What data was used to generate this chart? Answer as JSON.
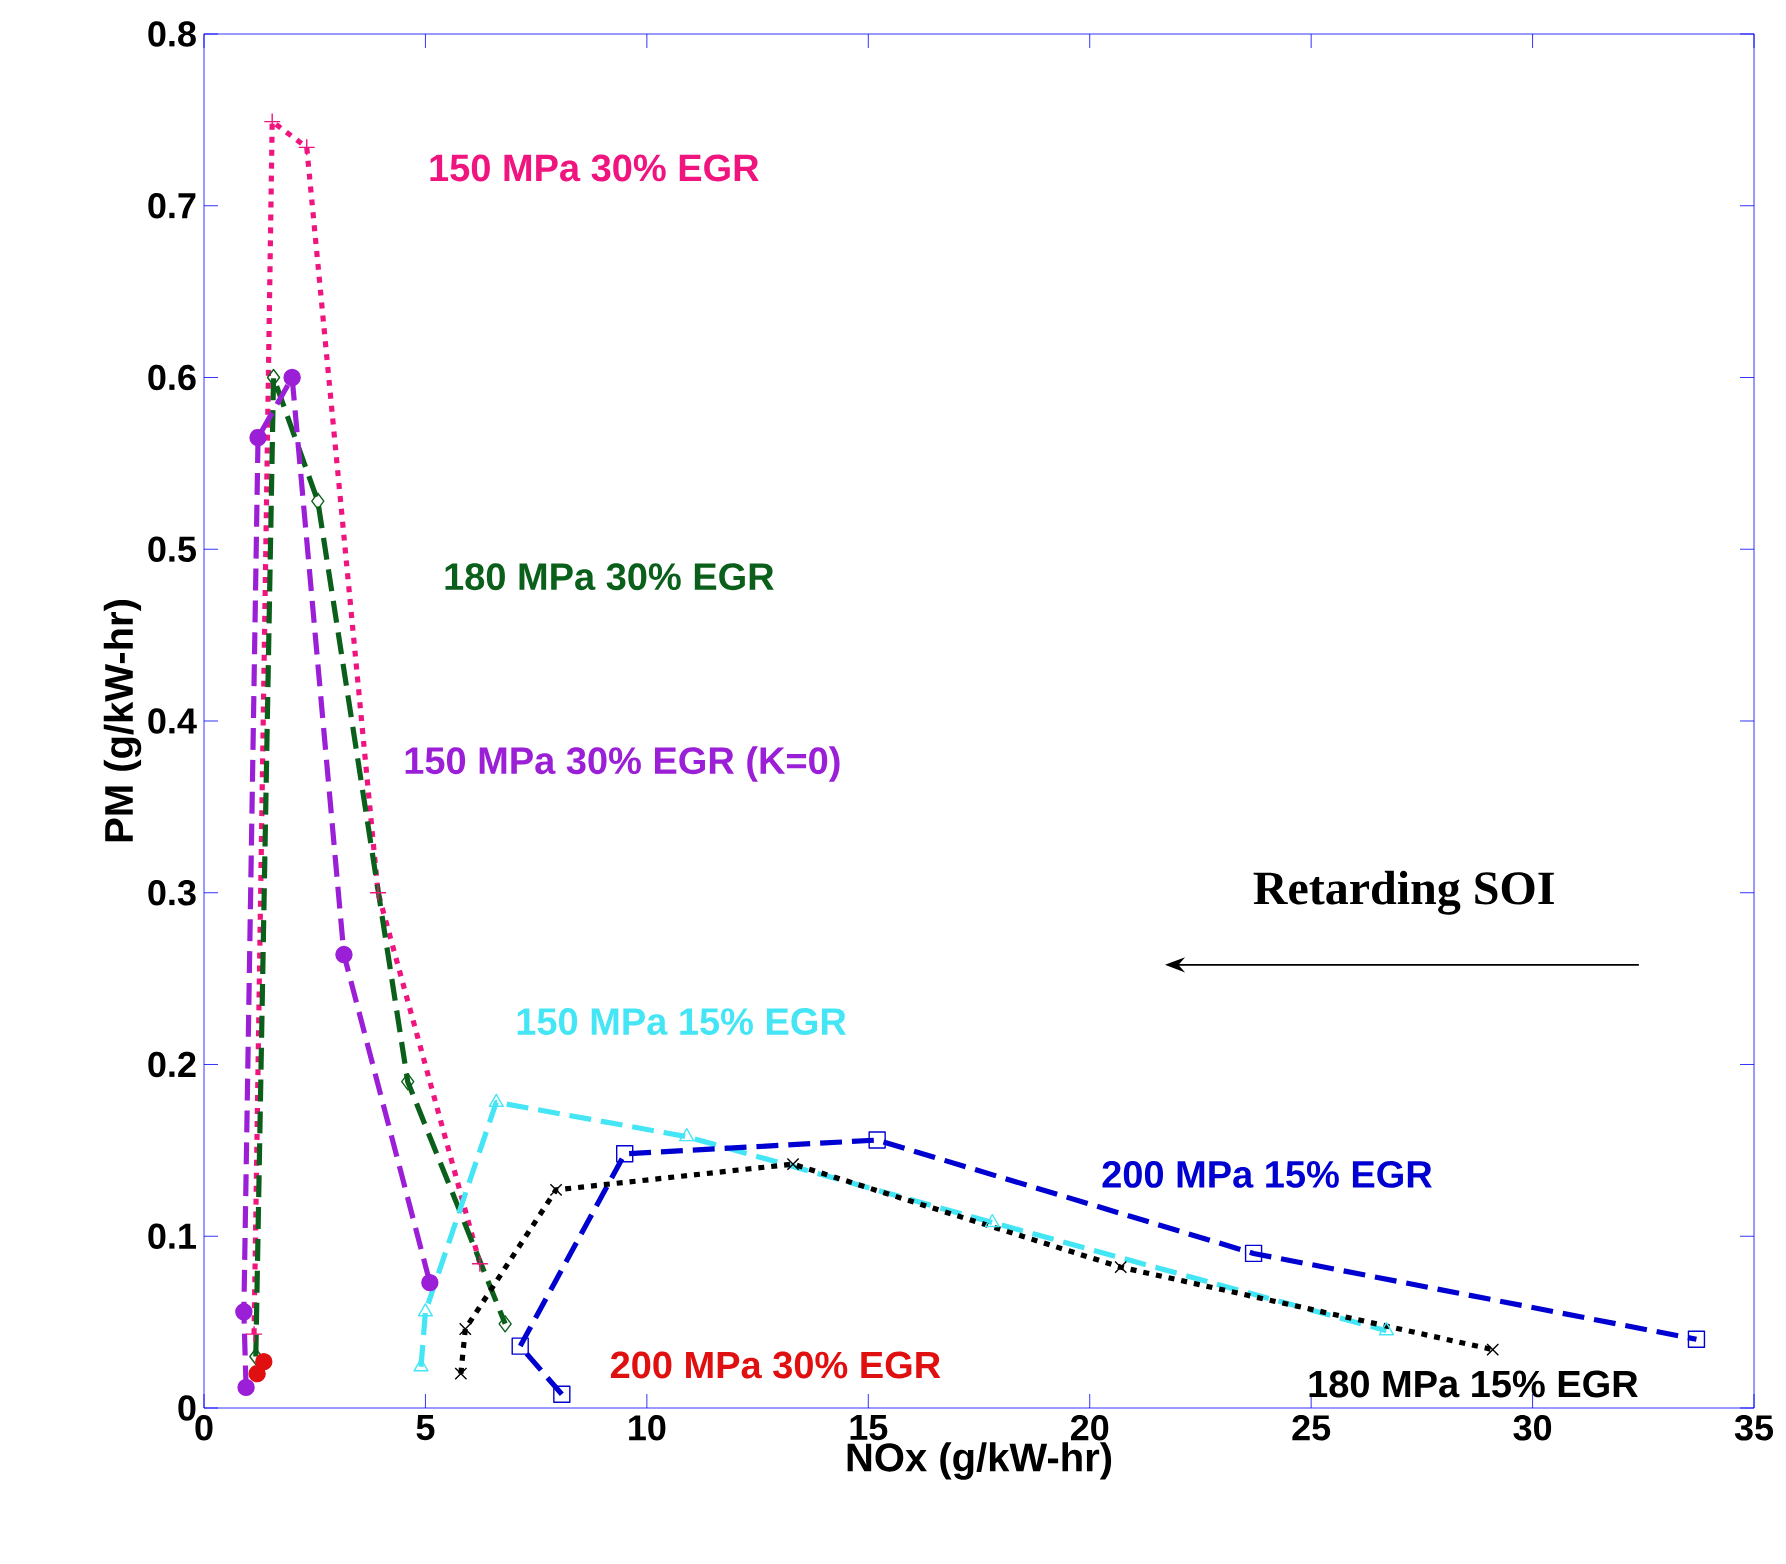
{
  "chart_data": {
    "type": "line",
    "xlabel": "NOx (g/kW-hr)",
    "ylabel": "PM (g/kW-hr)",
    "xlim": [
      0,
      35
    ],
    "ylim": [
      0,
      0.8
    ],
    "xticks": [
      0,
      5,
      10,
      15,
      20,
      25,
      30,
      35
    ],
    "yticks": [
      0,
      0.1,
      0.2,
      0.3,
      0.4,
      0.5,
      0.6,
      0.7,
      0.8
    ],
    "grid": false,
    "annotations": [
      "Retarding SOI"
    ],
    "series": [
      {
        "name": "150 MPa 30% EGR",
        "color": "#f0147f",
        "marker": "plus",
        "line_style": "dotted",
        "x": [
          1.13,
          1.54,
          2.32,
          3.93,
          6.23
        ],
        "values": [
          0.043,
          0.749,
          0.734,
          0.3,
          0.084
        ]
      },
      {
        "name": "180 MPa 30% EGR",
        "color": "#0a5f1a",
        "marker": "diamond",
        "line_style": "dashed",
        "x": [
          1.17,
          1.57,
          2.57,
          4.6,
          6.8
        ],
        "values": [
          0.03,
          0.6,
          0.528,
          0.19,
          0.049
        ]
      },
      {
        "name": "150 MPa 30% EGR (K=0)",
        "color": "#9b1fd6",
        "marker": "circle",
        "line_style": "dashed",
        "x": [
          0.95,
          0.9,
          1.22,
          1.99,
          3.16,
          5.1
        ],
        "values": [
          0.012,
          0.056,
          0.565,
          0.6,
          0.264,
          0.073
        ]
      },
      {
        "name": "150 MPa 15% EGR",
        "color": "#44e5f5",
        "marker": "triangle",
        "line_style": "dashed",
        "x": [
          4.9,
          5.0,
          6.6,
          10.9,
          17.8,
          26.7
        ],
        "values": [
          0.024,
          0.056,
          0.178,
          0.158,
          0.108,
          0.045
        ]
      },
      {
        "name": "200 MPa 15% EGR",
        "color": "#0000d0",
        "marker": "square",
        "line_style": "dashed",
        "x": [
          8.08,
          7.14,
          9.5,
          15.2,
          23.7,
          33.7
        ],
        "values": [
          0.008,
          0.036,
          0.148,
          0.156,
          0.09,
          0.04
        ]
      },
      {
        "name": "180 MPa 15% EGR",
        "color": "#000000",
        "marker": "cross",
        "line_style": "dotted",
        "x": [
          5.8,
          5.9,
          7.95,
          13.3,
          20.7,
          29.1
        ],
        "values": [
          0.02,
          0.046,
          0.127,
          0.142,
          0.082,
          0.034
        ]
      },
      {
        "name": "200 MPa 30% EGR",
        "color": "#e01010",
        "type": "scatter",
        "marker": "circle",
        "x": [
          1.2,
          1.35
        ],
        "values": [
          0.02,
          0.027
        ]
      }
    ]
  }
}
